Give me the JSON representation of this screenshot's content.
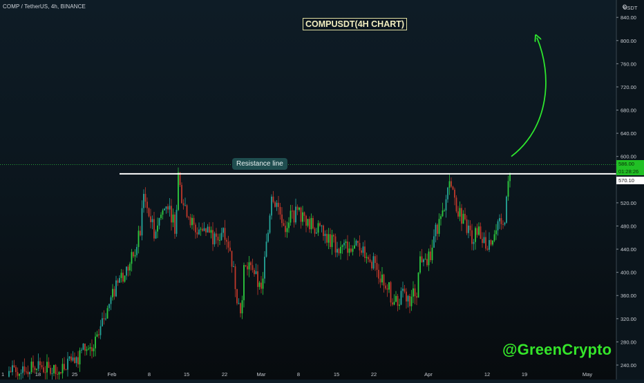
{
  "header": {
    "symbol": "COMP / TetherUS, 4h, BINANCE",
    "currency": "USDT",
    "settings_icon": "gear-icon"
  },
  "annotations": {
    "chart_title": "COMPUSDT(4H CHART)",
    "resistance_label": "Resistance line",
    "watermark": "@GreenCrypto"
  },
  "price_tags": {
    "current_price": "586.00",
    "countdown": "01:28:26",
    "resistance_price": "570.10"
  },
  "colors": {
    "up": "#26a69a",
    "up_bright": "#2ecc40",
    "down": "#c0392b",
    "watermark": "#35e52a",
    "arrow": "#2ee62e",
    "resistance": "#ffffff"
  },
  "chart_data": {
    "type": "candlestick",
    "title": "COMPUSDT(4H CHART)",
    "y_ticks": [
      "840.00",
      "800.00",
      "760.00",
      "720.00",
      "680.00",
      "640.00",
      "600.00",
      "520.00",
      "480.00",
      "440.00",
      "400.00",
      "360.00",
      "320.00",
      "280.00",
      "240.00"
    ],
    "x_ticks": [
      "1",
      "18",
      "25",
      "Feb",
      "8",
      "15",
      "22",
      "Mar",
      "8",
      "15",
      "22",
      "Apr",
      "12",
      "19",
      "May"
    ],
    "ylim": [
      215,
      870
    ],
    "resistance_level": 570.1,
    "current_price": 586.0,
    "price_path": [
      [
        0,
        220
      ],
      [
        10,
        230
      ],
      [
        20,
        228
      ],
      [
        30,
        240
      ],
      [
        40,
        232
      ],
      [
        50,
        245
      ],
      [
        60,
        235
      ],
      [
        70,
        230
      ],
      [
        80,
        225
      ],
      [
        90,
        240
      ],
      [
        100,
        260
      ],
      [
        110,
        255
      ],
      [
        120,
        270
      ],
      [
        130,
        265
      ],
      [
        140,
        290
      ],
      [
        150,
        330
      ],
      [
        160,
        360
      ],
      [
        170,
        390
      ],
      [
        180,
        400
      ],
      [
        190,
        430
      ],
      [
        200,
        470
      ],
      [
        205,
        540
      ],
      [
        210,
        510
      ],
      [
        220,
        470
      ],
      [
        230,
        500
      ],
      [
        240,
        520
      ],
      [
        250,
        480
      ],
      [
        255,
        560
      ],
      [
        260,
        530
      ],
      [
        270,
        500
      ],
      [
        280,
        470
      ],
      [
        290,
        480
      ],
      [
        300,
        470
      ],
      [
        310,
        450
      ],
      [
        320,
        480
      ],
      [
        330,
        440
      ],
      [
        340,
        360
      ],
      [
        345,
        330
      ],
      [
        350,
        400
      ],
      [
        360,
        420
      ],
      [
        370,
        380
      ],
      [
        375,
        370
      ],
      [
        380,
        420
      ],
      [
        385,
        470
      ],
      [
        390,
        540
      ],
      [
        400,
        510
      ],
      [
        410,
        480
      ],
      [
        420,
        500
      ],
      [
        430,
        500
      ],
      [
        440,
        490
      ],
      [
        450,
        480
      ],
      [
        460,
        470
      ],
      [
        470,
        460
      ],
      [
        480,
        450
      ],
      [
        490,
        440
      ],
      [
        500,
        445
      ],
      [
        510,
        440
      ],
      [
        520,
        445
      ],
      [
        530,
        430
      ],
      [
        540,
        410
      ],
      [
        550,
        390
      ],
      [
        560,
        370
      ],
      [
        565,
        340
      ],
      [
        570,
        350
      ],
      [
        580,
        360
      ],
      [
        590,
        355
      ],
      [
        600,
        370
      ],
      [
        605,
        420
      ],
      [
        610,
        430
      ],
      [
        620,
        420
      ],
      [
        625,
        460
      ],
      [
        630,
        480
      ],
      [
        640,
        500
      ],
      [
        645,
        550
      ],
      [
        650,
        560
      ],
      [
        655,
        520
      ],
      [
        660,
        510
      ],
      [
        670,
        480
      ],
      [
        680,
        460
      ],
      [
        690,
        470
      ],
      [
        700,
        450
      ],
      [
        710,
        460
      ],
      [
        720,
        480
      ],
      [
        725,
        475
      ],
      [
        730,
        520
      ],
      [
        735,
        580
      ]
    ],
    "projection": "curved arrow rising from ~586 toward ~800"
  }
}
